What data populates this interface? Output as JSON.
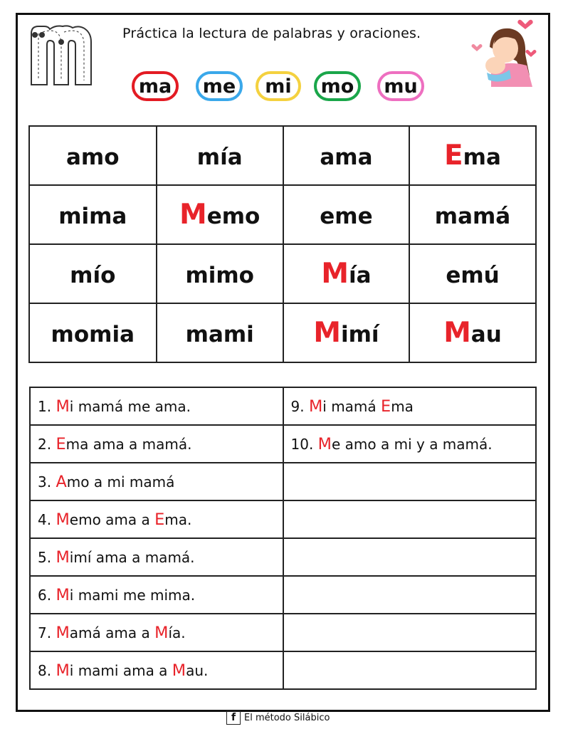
{
  "header": {
    "title": "Práctica la lectura de palabras y oraciones.",
    "letter_icon": "letter-m-tracing-icon",
    "illustration": "mother-holding-baby-icon",
    "syllables": [
      {
        "text": "ma",
        "color": "#e31b23"
      },
      {
        "text": "me",
        "color": "#3aa8ea"
      },
      {
        "text": "mi",
        "color": "#f4d13f"
      },
      {
        "text": "mo",
        "color": "#1aa64a"
      },
      {
        "text": "mu",
        "color": "#ee6fc0"
      }
    ]
  },
  "words": [
    [
      {
        "red": "",
        "rest": "amo"
      },
      {
        "red": "",
        "rest": "mía"
      },
      {
        "red": "",
        "rest": "ama"
      },
      {
        "red": "E",
        "rest": "ma"
      }
    ],
    [
      {
        "red": "",
        "rest": "mima"
      },
      {
        "red": "M",
        "rest": "emo"
      },
      {
        "red": "",
        "rest": "eme"
      },
      {
        "red": "",
        "rest": "mamá"
      }
    ],
    [
      {
        "red": "",
        "rest": "mío"
      },
      {
        "red": "",
        "rest": "mimo"
      },
      {
        "red": "M",
        "rest": "ía"
      },
      {
        "red": "",
        "rest": "emú"
      }
    ],
    [
      {
        "red": "",
        "rest": "momia"
      },
      {
        "red": "",
        "rest": "mami"
      },
      {
        "red": "M",
        "rest": "imí"
      },
      {
        "red": "M",
        "rest": "au"
      }
    ]
  ],
  "sentences_left": [
    [
      [
        "1. ",
        0
      ],
      [
        "M",
        1
      ],
      [
        "i mamá me ama.",
        0
      ]
    ],
    [
      [
        "2. ",
        0
      ],
      [
        "E",
        1
      ],
      [
        "ma ama a mamá.",
        0
      ]
    ],
    [
      [
        "3. ",
        0
      ],
      [
        "A",
        1
      ],
      [
        "mo a mi mamá",
        0
      ]
    ],
    [
      [
        "4. ",
        0
      ],
      [
        "M",
        1
      ],
      [
        "emo ama a ",
        0
      ],
      [
        "E",
        1
      ],
      [
        "ma.",
        0
      ]
    ],
    [
      [
        "5. ",
        0
      ],
      [
        "M",
        1
      ],
      [
        "imí ama a mamá.",
        0
      ]
    ],
    [
      [
        "6. ",
        0
      ],
      [
        "M",
        1
      ],
      [
        "i mami me mima.",
        0
      ]
    ],
    [
      [
        "7. ",
        0
      ],
      [
        "M",
        1
      ],
      [
        "amá ama a ",
        0
      ],
      [
        "M",
        1
      ],
      [
        "ía.",
        0
      ]
    ],
    [
      [
        "8. ",
        0
      ],
      [
        "M",
        1
      ],
      [
        "i mami ama a ",
        0
      ],
      [
        "M",
        1
      ],
      [
        "au.",
        0
      ]
    ]
  ],
  "sentences_right": [
    [
      [
        "9. ",
        0
      ],
      [
        "M",
        1
      ],
      [
        "i mamá ",
        0
      ],
      [
        "E",
        1
      ],
      [
        "ma",
        0
      ]
    ],
    [
      [
        "10. ",
        0
      ],
      [
        "M",
        1
      ],
      [
        "e amo a mi y a mamá.",
        0
      ]
    ],
    [],
    [],
    [],
    [],
    [],
    []
  ],
  "footer": {
    "icon": "facebook-icon",
    "fb_glyph": "f",
    "text": "El método Silábico"
  },
  "accent_red": "#e8232a"
}
